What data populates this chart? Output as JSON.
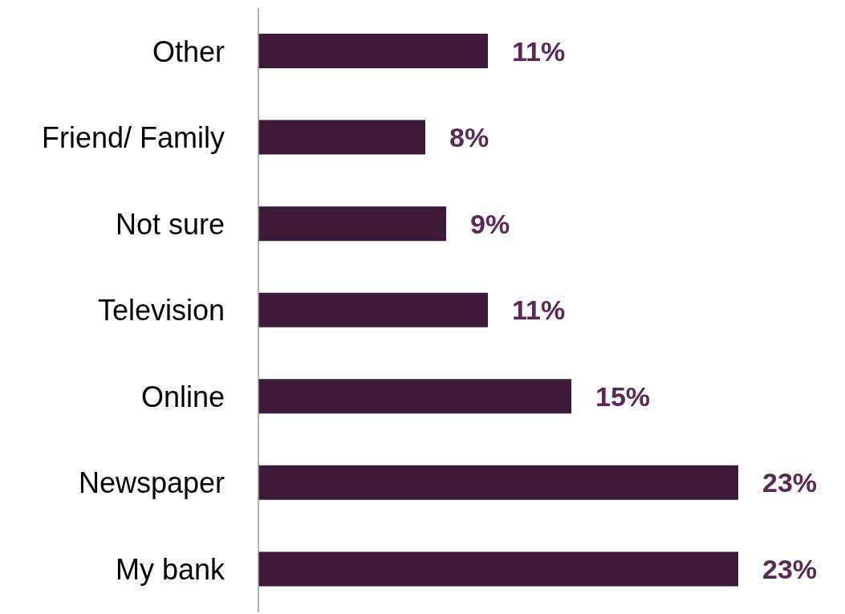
{
  "chart_data": {
    "type": "bar",
    "orientation": "horizontal",
    "categories": [
      "Other",
      "Friend/ Family",
      "Not sure",
      "Television",
      "Online",
      "Newspaper",
      "My bank"
    ],
    "values": [
      11,
      8,
      9,
      11,
      15,
      23,
      23
    ],
    "value_labels": [
      "11%",
      "8%",
      "9%",
      "11%",
      "15%",
      "23%",
      "23%"
    ],
    "color": "#3d1a3a"
  }
}
